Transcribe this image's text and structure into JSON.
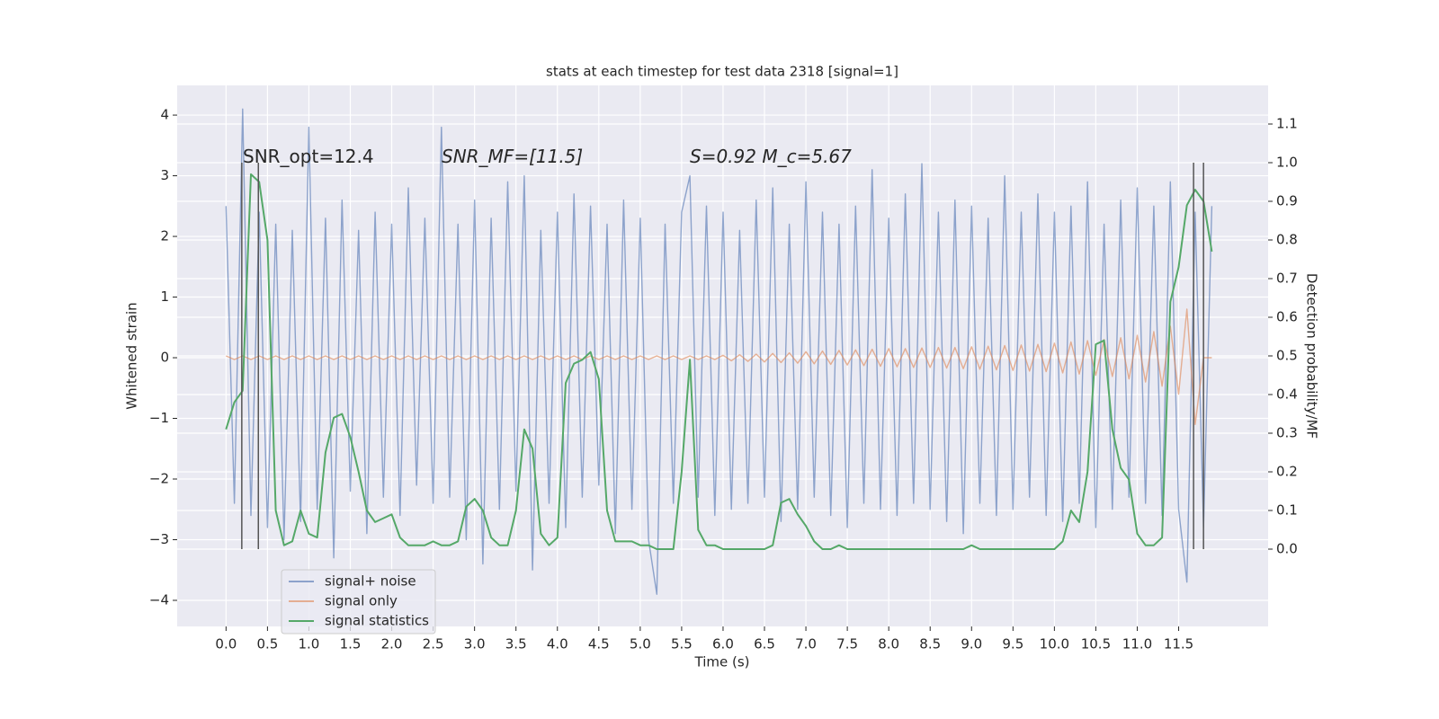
{
  "chart_data": {
    "type": "line",
    "title": "stats at each timestep for test data 2318 [signal=1]",
    "x_label": "Time (s)",
    "y_label": "Whitened strain",
    "y2_label": "Detection probability/MF",
    "annotations": [
      "SNR_opt=12.4",
      "SNR_MF=[11.5]",
      "S=0.92   M_c=5.67"
    ],
    "vlines": [
      0.19,
      0.39,
      11.68,
      11.8
    ],
    "xlim": [
      -0.59,
      12.58
    ],
    "ylim": [
      -4.43,
      4.49
    ],
    "y2lim": [
      -0.2,
      1.2
    ],
    "xticks": [
      {
        "value": 0,
        "label": "0.0"
      },
      0.5,
      {
        "value": 1,
        "label": "1.0"
      },
      1.5,
      {
        "value": 2,
        "label": "2.0"
      },
      2.5,
      {
        "value": 3,
        "label": "3.0"
      },
      3.5,
      {
        "value": 4,
        "label": "4.0"
      },
      4.5,
      {
        "value": 5,
        "label": "5.0"
      },
      5.5,
      {
        "value": 6,
        "label": "6.0"
      },
      6.5,
      {
        "value": 7,
        "label": "7.0"
      },
      7.5,
      {
        "value": 8,
        "label": "8.0"
      },
      8.5,
      {
        "value": 9,
        "label": "9.0"
      },
      9.5,
      {
        "value": 10,
        "label": "10.0"
      },
      10.5,
      {
        "value": 11,
        "label": "11.0"
      },
      11.5
    ],
    "yticks": [
      {
        "value": -4,
        "label": "−4"
      },
      {
        "value": -3,
        "label": "−3"
      },
      {
        "value": -2,
        "label": "−2"
      },
      {
        "value": -1,
        "label": "−1"
      },
      0,
      1,
      2,
      3,
      4
    ],
    "y2ticks": [
      {
        "value": 0,
        "label": "0.0"
      },
      0.1,
      0.2,
      0.3,
      0.4,
      0.5,
      0.6,
      0.7,
      0.8,
      0.9,
      {
        "value": 1,
        "label": "1.0"
      },
      1.1
    ],
    "grid": true,
    "legend": "lower left",
    "x": [
      0,
      0.1,
      0.2,
      0.3,
      0.4,
      0.5,
      0.6,
      0.7,
      0.8,
      0.9,
      1,
      1.1,
      1.2,
      1.3,
      1.4,
      1.5,
      1.6,
      1.7,
      1.8,
      1.9,
      2,
      2.1,
      2.2,
      2.3,
      2.4,
      2.5,
      2.6,
      2.7,
      2.8,
      2.9,
      3,
      3.1,
      3.2,
      3.3,
      3.4,
      3.5,
      3.6,
      3.7,
      3.8,
      3.9,
      4,
      4.1,
      4.2,
      4.3,
      4.4,
      4.5,
      4.6,
      4.7,
      4.8,
      4.9,
      5,
      5.1,
      5.2,
      5.3,
      5.4,
      5.5,
      5.6,
      5.7,
      5.8,
      5.9,
      6,
      6.1,
      6.2,
      6.3,
      6.4,
      6.5,
      6.6,
      6.7,
      6.8,
      6.9,
      7,
      7.1,
      7.2,
      7.3,
      7.4,
      7.5,
      7.6,
      7.7,
      7.8,
      7.9,
      8,
      8.1,
      8.2,
      8.3,
      8.4,
      8.5,
      8.6,
      8.7,
      8.8,
      8.9,
      9,
      9.1,
      9.2,
      9.3,
      9.4,
      9.5,
      9.6,
      9.7,
      9.8,
      9.9,
      10,
      10.1,
      10.2,
      10.3,
      10.4,
      10.5,
      10.6,
      10.7,
      10.8,
      10.9,
      11,
      11.1,
      11.2,
      11.3,
      11.4,
      11.5,
      11.6,
      11.7,
      11.8,
      11.9
    ],
    "series": [
      {
        "name": "signal+ noise",
        "color": "#4c72b0",
        "values": [
          2.5,
          -2.4,
          4.1,
          -2.6,
          2.4,
          -2.8,
          2.2,
          -3.0,
          2.1,
          -2.7,
          3.8,
          -2.5,
          2.3,
          -3.3,
          2.6,
          -2.2,
          2.1,
          -2.9,
          2.4,
          -2.3,
          2.2,
          -2.6,
          2.8,
          -2.1,
          2.3,
          -2.4,
          3.8,
          -2.3,
          2.2,
          -3.0,
          2.6,
          -3.4,
          2.3,
          -2.5,
          2.9,
          -2.2,
          3.0,
          -3.5,
          2.1,
          -2.4,
          2.4,
          -2.8,
          2.7,
          -2.3,
          2.5,
          -2.1,
          2.2,
          -2.9,
          2.6,
          -2.5,
          2.3,
          -3.0,
          -3.9,
          2.2,
          -2.4,
          2.4,
          3.0,
          -2.3,
          2.5,
          -2.6,
          2.4,
          -2.5,
          2.1,
          -2.4,
          2.6,
          -2.3,
          2.8,
          -2.7,
          2.2,
          -2.5,
          2.9,
          -2.3,
          2.4,
          -2.6,
          2.2,
          -2.8,
          2.5,
          -2.4,
          3.1,
          -2.5,
          2.3,
          -2.6,
          2.7,
          -2.4,
          3.2,
          -2.5,
          2.4,
          -2.7,
          2.6,
          -2.9,
          2.5,
          -2.4,
          2.3,
          -2.6,
          3.0,
          -2.5,
          2.4,
          -2.3,
          2.7,
          -2.6,
          2.4,
          -2.7,
          2.5,
          -2.4,
          2.9,
          -2.8,
          2.2,
          -2.5,
          2.6,
          -2.3,
          2.8,
          -2.4,
          2.5,
          -2.6,
          2.9,
          -2.5,
          -3.7,
          2.4,
          -2.8,
          2.5
        ]
      },
      {
        "name": "signal only",
        "color": "#dd8452",
        "values": [
          0.03,
          -0.03,
          0.03,
          -0.03,
          0.03,
          -0.03,
          0.03,
          -0.03,
          0.03,
          -0.03,
          0.03,
          -0.03,
          0.03,
          -0.03,
          0.03,
          -0.03,
          0.03,
          -0.03,
          0.03,
          -0.03,
          0.03,
          -0.03,
          0.03,
          -0.03,
          0.03,
          -0.03,
          0.03,
          -0.03,
          0.03,
          -0.03,
          0.03,
          -0.03,
          0.03,
          -0.03,
          0.03,
          -0.03,
          0.03,
          -0.03,
          0.03,
          -0.03,
          0.03,
          -0.03,
          0.03,
          -0.03,
          0.03,
          -0.03,
          0.03,
          -0.03,
          0.03,
          -0.03,
          0.03,
          -0.03,
          0.03,
          -0.03,
          0.03,
          -0.03,
          0.03,
          -0.03,
          0.03,
          -0.03,
          0.04,
          -0.05,
          0.05,
          -0.06,
          0.06,
          -0.07,
          0.07,
          -0.08,
          0.08,
          -0.09,
          0.1,
          -0.1,
          0.11,
          -0.11,
          0.12,
          -0.12,
          0.13,
          -0.13,
          0.14,
          -0.14,
          0.15,
          -0.15,
          0.15,
          -0.16,
          0.16,
          -0.16,
          0.17,
          -0.17,
          0.17,
          -0.18,
          0.18,
          -0.19,
          0.19,
          -0.2,
          0.2,
          -0.21,
          0.21,
          -0.22,
          0.22,
          -0.23,
          0.24,
          -0.25,
          0.26,
          -0.27,
          0.28,
          -0.29,
          0.3,
          -0.31,
          0.33,
          -0.35,
          0.37,
          -0.4,
          0.43,
          -0.47,
          0.52,
          -0.6,
          0.8,
          -1.1,
          0,
          0
        ]
      },
      {
        "name": "signal statistics",
        "color": "#55a868",
        "axis": "y2",
        "values": [
          0.31,
          0.38,
          0.41,
          0.97,
          0.95,
          0.8,
          0.1,
          0.01,
          0.02,
          0.1,
          0.04,
          0.03,
          0.25,
          0.34,
          0.35,
          0.29,
          0.2,
          0.1,
          0.07,
          0.08,
          0.09,
          0.03,
          0.01,
          0.01,
          0.01,
          0.02,
          0.01,
          0.01,
          0.02,
          0.11,
          0.13,
          0.1,
          0.03,
          0.01,
          0.01,
          0.1,
          0.31,
          0.26,
          0.04,
          0.01,
          0.03,
          0.43,
          0.48,
          0.49,
          0.51,
          0.44,
          0.1,
          0.02,
          0.02,
          0.02,
          0.01,
          0.01,
          0,
          0,
          0,
          0.2,
          0.49,
          0.05,
          0.01,
          0.01,
          0,
          0,
          0,
          0,
          0,
          0,
          0.01,
          0.12,
          0.13,
          0.09,
          0.06,
          0.02,
          0,
          0,
          0.01,
          0,
          0,
          0,
          0,
          0,
          0,
          0,
          0,
          0,
          0,
          0,
          0,
          0,
          0,
          0,
          0.01,
          0,
          0,
          0,
          0,
          0,
          0,
          0,
          0,
          0,
          0,
          0.02,
          0.1,
          0.07,
          0.2,
          0.53,
          0.54,
          0.31,
          0.21,
          0.18,
          0.04,
          0.01,
          0.01,
          0.03,
          0.64,
          0.73,
          0.89,
          0.93,
          0.9,
          0.77
        ]
      }
    ]
  }
}
